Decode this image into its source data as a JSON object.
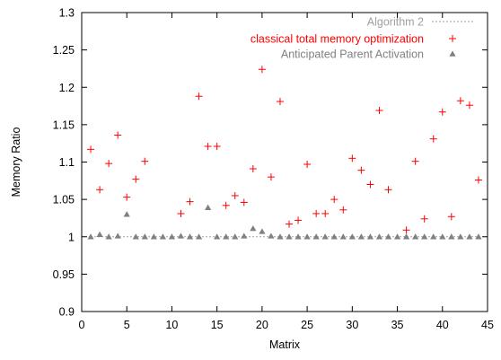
{
  "chart_data": {
    "type": "scatter",
    "xlabel": "Matrix",
    "ylabel": "Memory Ratio",
    "xlim": [
      0,
      45
    ],
    "ylim": [
      0.9,
      1.3
    ],
    "xticks": [
      0,
      5,
      10,
      15,
      20,
      25,
      30,
      35,
      40,
      45
    ],
    "yticks": [
      0.9,
      0.95,
      1,
      1.05,
      1.1,
      1.15,
      1.2,
      1.25,
      1.3
    ],
    "xtick_labels": [
      "0",
      "5",
      "10",
      "15",
      "20",
      "25",
      "30",
      "35",
      "40",
      "45"
    ],
    "ytick_labels": [
      "0.9",
      "0.95",
      "1",
      "1.05",
      "1.1",
      "1.15",
      "1.2",
      "1.25",
      "1.3"
    ],
    "grid": false,
    "legend_position": "top-right",
    "series": [
      {
        "name": "Algorithm 2",
        "kind": "line",
        "color": "#a0a0a0",
        "x": [
          1,
          44
        ],
        "y": [
          1.0,
          1.0
        ]
      },
      {
        "name": "classical total memory optimization",
        "kind": "plus",
        "color": "#ff0000",
        "x": [
          1,
          2,
          3,
          4,
          5,
          6,
          7,
          11,
          12,
          13,
          14,
          15,
          16,
          17,
          18,
          19,
          20,
          21,
          22,
          23,
          24,
          25,
          26,
          27,
          28,
          29,
          30,
          31,
          32,
          33,
          34,
          36,
          37,
          38,
          39,
          40,
          41,
          42,
          43,
          44
        ],
        "y": [
          1.117,
          1.063,
          1.098,
          1.136,
          1.053,
          1.077,
          1.101,
          1.031,
          1.047,
          1.188,
          1.121,
          1.121,
          1.042,
          1.055,
          1.046,
          1.091,
          1.224,
          1.08,
          1.181,
          1.017,
          1.022,
          1.097,
          1.031,
          1.031,
          1.05,
          1.036,
          1.105,
          1.089,
          1.07,
          1.169,
          1.063,
          1.009,
          1.101,
          1.024,
          1.131,
          1.167,
          1.027,
          1.182,
          1.176,
          1.076
        ]
      },
      {
        "name": "Anticipated Parent Activation",
        "kind": "triangle",
        "color": "#808080",
        "x": [
          1,
          2,
          3,
          4,
          5,
          6,
          7,
          8,
          9,
          10,
          11,
          12,
          13,
          14,
          15,
          16,
          17,
          18,
          19,
          20,
          21,
          22,
          23,
          24,
          25,
          26,
          27,
          28,
          29,
          30,
          31,
          32,
          33,
          34,
          35,
          36,
          37,
          38,
          39,
          40,
          41,
          42,
          43,
          44
        ],
        "y": [
          1.0,
          1.003,
          1.0,
          1.001,
          1.03,
          1.0,
          1.0,
          1.0,
          1.0,
          1.0,
          1.001,
          1.0,
          1.0,
          1.039,
          1.0,
          1.0,
          1.0,
          1.001,
          1.011,
          1.007,
          1.001,
          1.0,
          1.0,
          1.0,
          1.0,
          1.0,
          1.0,
          1.0,
          1.0,
          1.0,
          1.0,
          1.0,
          1.0,
          1.0,
          1.0,
          1.0,
          1.0,
          1.0,
          1.0,
          1.0,
          1.0,
          1.0,
          1.0,
          1.0
        ]
      }
    ]
  }
}
